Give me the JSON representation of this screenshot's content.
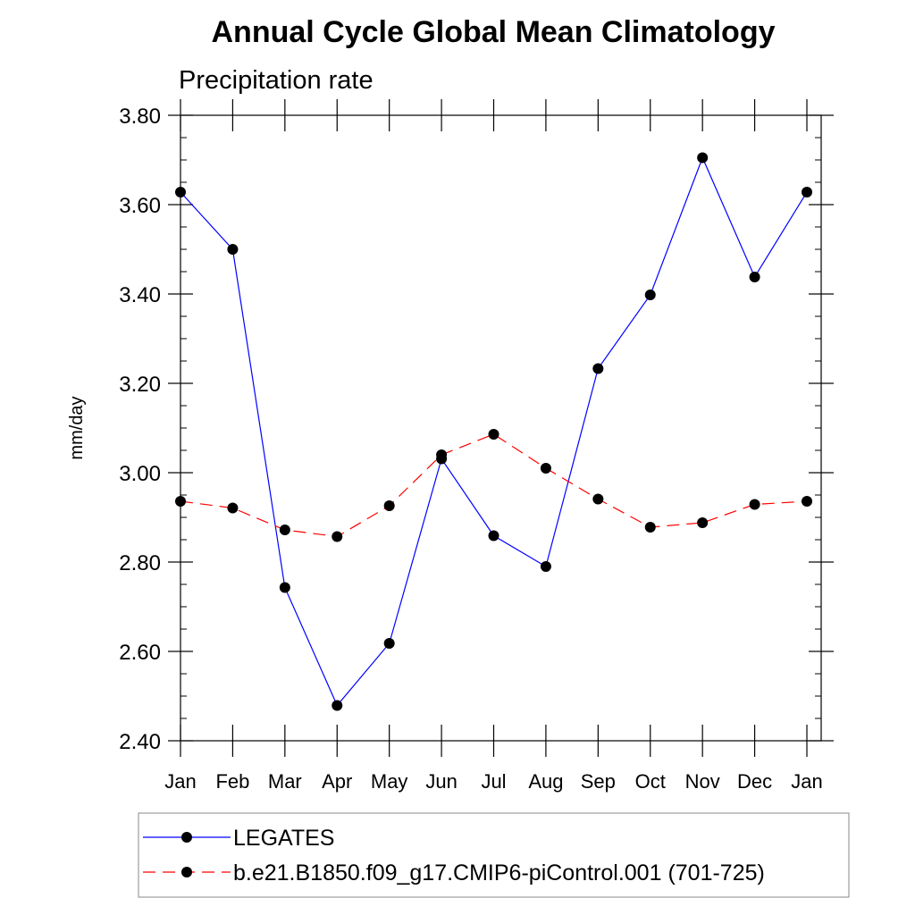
{
  "chart_data": {
    "type": "line",
    "title": "Annual Cycle Global Mean Climatology",
    "subtitle": "Precipitation rate",
    "xlabel": "",
    "ylabel": "mm/day",
    "categories": [
      "Jan",
      "Feb",
      "Mar",
      "Apr",
      "May",
      "Jun",
      "Jul",
      "Aug",
      "Sep",
      "Oct",
      "Nov",
      "Dec",
      "Jan"
    ],
    "ylim": [
      2.4,
      3.8
    ],
    "yticks": [
      "2.40",
      "2.60",
      "2.80",
      "3.00",
      "3.20",
      "3.40",
      "3.60",
      "3.80"
    ],
    "legend_position": "bottom",
    "series": [
      {
        "name": "LEGATES",
        "color": "#0000ff",
        "style": "solid",
        "marker": "circle",
        "values": [
          3.628,
          3.5,
          2.743,
          2.479,
          2.618,
          3.031,
          2.859,
          2.79,
          3.233,
          3.398,
          3.705,
          3.438,
          3.628
        ]
      },
      {
        "name": "b.e21.B1850.f09_g17.CMIP6-piControl.001 (701-725)",
        "color": "#ff0000",
        "style": "dashed",
        "marker": "circle",
        "values": [
          2.936,
          2.921,
          2.872,
          2.857,
          2.926,
          3.04,
          3.086,
          3.01,
          2.941,
          2.878,
          2.888,
          2.929,
          2.936
        ]
      }
    ]
  }
}
